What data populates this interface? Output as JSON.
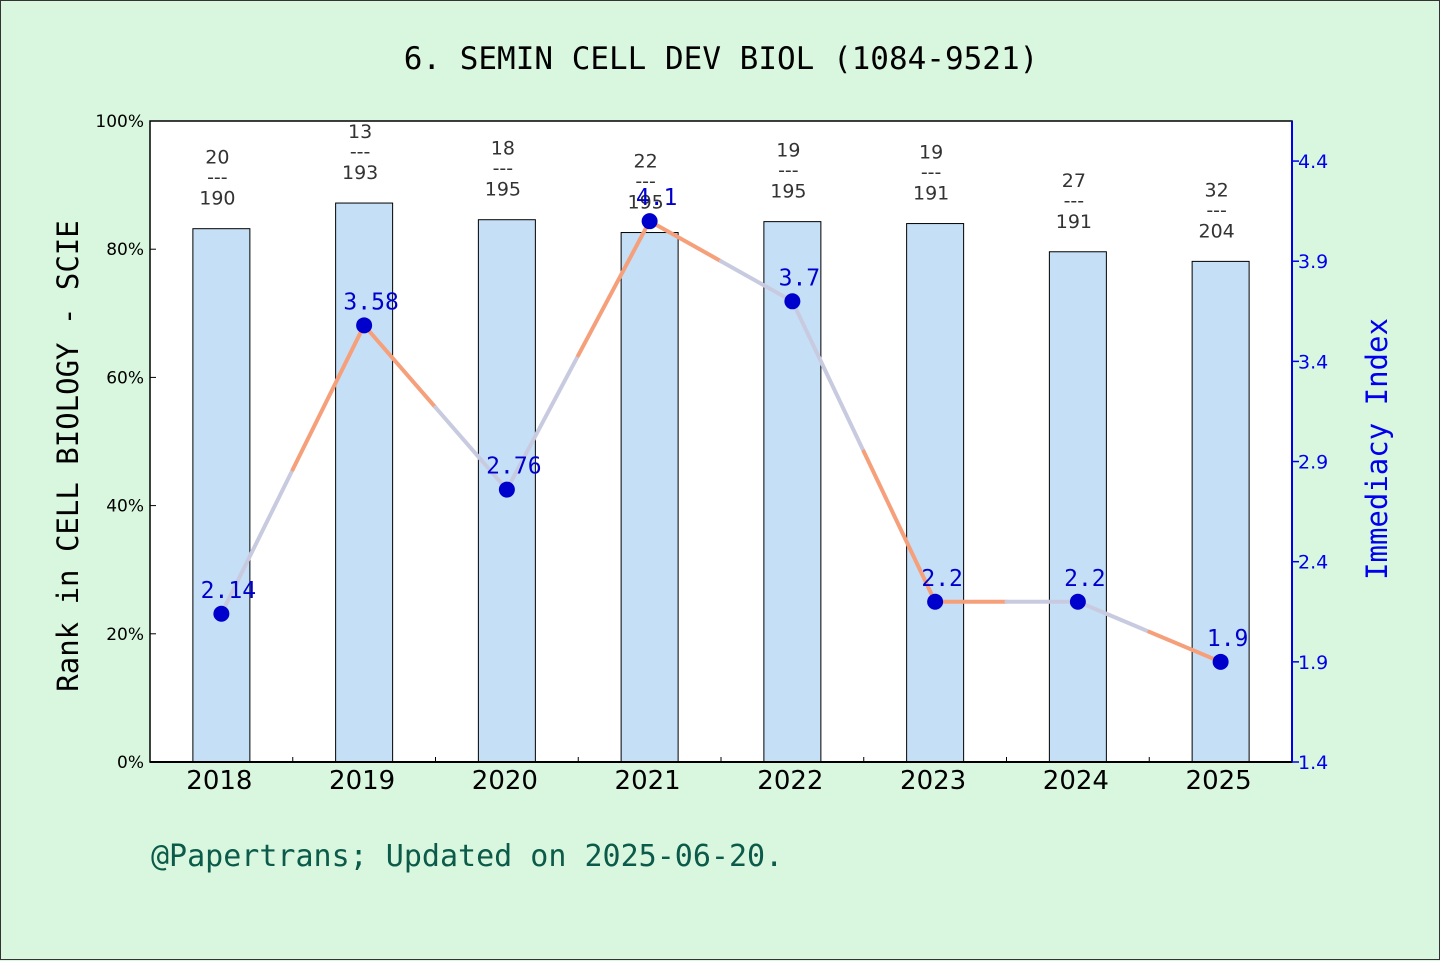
{
  "colors": {
    "background": "#d9f7df",
    "plot_background": "#ffffff",
    "bar_fill": "#c5dff7",
    "line_color": "#f5a07a",
    "line_segment_alt": "#c8cbe0",
    "marker_color": "#0000cc",
    "right_axis_color": "#0000ee",
    "footer_color": "#0b5a4a"
  },
  "chart_data": {
    "type": "bar",
    "title": "6. SEMIN CELL DEV BIOL (1084-9521)",
    "ylabel": "Rank in CELL BIOLOGY - SCIE",
    "ylabel_right": "Immediacy Index",
    "categories": [
      "2018",
      "2019",
      "2020",
      "2021",
      "2022",
      "2023",
      "2024",
      "2025"
    ],
    "ylim": [
      0,
      100
    ],
    "yticks": [
      "0%",
      "20%",
      "40%",
      "60%",
      "80%",
      "100%"
    ],
    "ylim_right": [
      1.4,
      4.6
    ],
    "yticks_right": [
      "1.4",
      "1.9",
      "2.4",
      "2.9",
      "3.4",
      "3.9",
      "4.4"
    ],
    "bar_series": {
      "name": "",
      "values": [
        83.2,
        87.2,
        84.6,
        82.6,
        84.3,
        84.0,
        79.6,
        78.1
      ],
      "ranks": [
        "20",
        "13",
        "18",
        "22",
        "19",
        "19",
        "27",
        "32"
      ],
      "totals": [
        "190",
        "193",
        "195",
        "195",
        "195",
        "191",
        "191",
        "204"
      ],
      "separator": "---"
    },
    "line_series": {
      "name": "",
      "values": [
        2.14,
        3.58,
        2.76,
        4.1,
        3.7,
        2.2,
        2.2,
        1.9
      ],
      "labels": [
        "2.14",
        "3.58",
        "2.76",
        "4.1",
        "3.7",
        "2.2",
        "2.2",
        "1.9"
      ]
    },
    "grid": false,
    "legend": "none"
  },
  "footer": "@Papertrans; Updated on 2025-06-20."
}
